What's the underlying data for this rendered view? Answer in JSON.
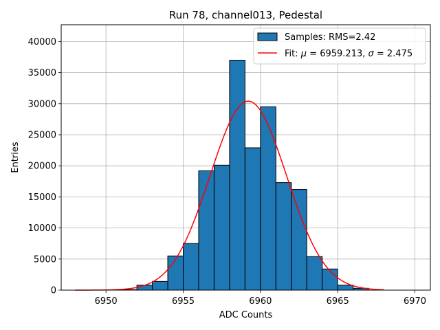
{
  "chart_data": {
    "type": "bar",
    "title": "Run 78, channel013, Pedestal",
    "xlabel": "ADC Counts",
    "ylabel": "Entries",
    "xlim": [
      6947.1,
      6971.0
    ],
    "ylim": [
      0,
      42700
    ],
    "xticks": [
      6950,
      6955,
      6960,
      6965,
      6970
    ],
    "yticks": [
      0,
      5000,
      10000,
      15000,
      20000,
      25000,
      30000,
      35000,
      40000
    ],
    "grid": true,
    "legend_position": "top-right",
    "bar_color": "#1f77b4",
    "fit_color": "#ff0000",
    "histogram": {
      "name": "Samples: RMS=2.42",
      "bin_width": 1,
      "bin_edges_start": [
        6951,
        6952,
        6953,
        6954,
        6955,
        6956,
        6957,
        6958,
        6959,
        6960,
        6961,
        6962,
        6963,
        6964,
        6965,
        6966
      ],
      "values": [
        80,
        800,
        1400,
        5500,
        7500,
        19200,
        20100,
        37000,
        22900,
        29500,
        17300,
        16200,
        5400,
        3400,
        800,
        300
      ]
    },
    "fit": {
      "name_prefix": "Fit: ",
      "mu_symbol": "μ",
      "mu_text": " = 6959.213, ",
      "sigma_symbol": "σ",
      "sigma_text": " = 2.475",
      "mu": 6959.213,
      "sigma": 2.475,
      "amplitude": 30400,
      "x_range": [
        6948,
        6968
      ]
    }
  }
}
